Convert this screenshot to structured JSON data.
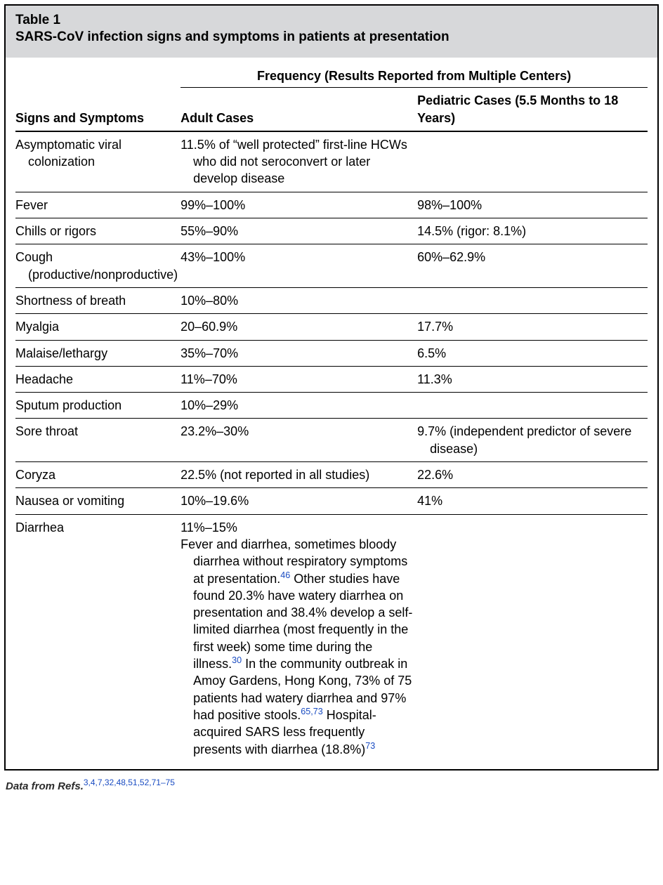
{
  "header": {
    "table_number": "Table 1",
    "table_title": "SARS-CoV infection signs and symptoms in patients at presentation"
  },
  "columns": {
    "super_header": "Frequency (Results Reported from Multiple Centers)",
    "col1": "Signs and Symptoms",
    "col2": "Adult Cases",
    "col3": "Pediatric Cases (5.5 Months to 18 Years)"
  },
  "rows": [
    {
      "sign": "Asymptomatic viral colonization",
      "adult": "11.5% of “well protected” first-line HCWs who did not seroconvert or later develop disease",
      "pediatric": ""
    },
    {
      "sign": "Fever",
      "adult": "99%–100%",
      "pediatric": "98%–100%"
    },
    {
      "sign": "Chills or rigors",
      "adult": "55%–90%",
      "pediatric": "14.5% (rigor: 8.1%)"
    },
    {
      "sign": "Cough (productive/nonproductive)",
      "adult": "43%–100%",
      "pediatric": "60%–62.9%"
    },
    {
      "sign": "Shortness of breath",
      "adult": "10%–80%",
      "pediatric": ""
    },
    {
      "sign": "Myalgia",
      "adult": "20–60.9%",
      "pediatric": "17.7%"
    },
    {
      "sign": "Malaise/lethargy",
      "adult": "35%–70%",
      "pediatric": "6.5%"
    },
    {
      "sign": "Headache",
      "adult": "11%–70%",
      "pediatric": "11.3%"
    },
    {
      "sign": "Sputum production",
      "adult": "10%–29%",
      "pediatric": ""
    },
    {
      "sign": "Sore throat",
      "adult": "23.2%–30%",
      "pediatric": "9.7% (independent predictor of severe disease)"
    },
    {
      "sign": "Coryza",
      "adult": "22.5% (not reported in all studies)",
      "pediatric": "22.6%"
    },
    {
      "sign": "Nausea or vomiting",
      "adult": "10%–19.6%",
      "pediatric": "41%"
    }
  ],
  "diarrhea": {
    "sign": "Diarrhea",
    "adult_line1": "11%–15%",
    "adult_seg1": "Fever and diarrhea, sometimes bloody diarrhea without respiratory symptoms at presentation.",
    "ref1": "46",
    "adult_seg2": " Other studies have found 20.3% have watery diarrhea on presentation and 38.4% develop a self-limited diarrhea (most frequently in the first week) some time during the illness.",
    "ref2": "30",
    "adult_seg3": " In the community outbreak in Amoy Gardens, Hong Kong, 73% of 75 patients had watery diarrhea and 97% had positive stools.",
    "ref3": "65,73",
    "adult_seg4": " Hospital-acquired SARS less frequently presents with diarrhea (18.8%)",
    "ref4": "73",
    "pediatric": ""
  },
  "footer": {
    "prefix": "Data from Refs.",
    "refs": "3,4,7,32,48,51,52,71–75"
  }
}
